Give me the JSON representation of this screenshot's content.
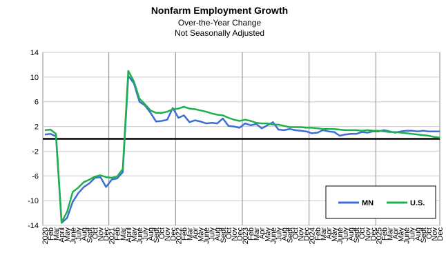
{
  "chart_data": {
    "type": "line",
    "title": "Nonfarm Employment Growth",
    "subtitle": [
      "Over-the-Year Change",
      "Not Seasonally Adjusted"
    ],
    "categories": [
      "2020",
      "Feb",
      "Mar",
      "April",
      "May",
      "June",
      "July",
      "Aug",
      "Sept",
      "Oct",
      "Nov",
      "Dec",
      "2021",
      "Feb",
      "Mar",
      "April",
      "May",
      "June",
      "July",
      "Aug",
      "Sept",
      "Oct",
      "Nov",
      "Dec",
      "2022",
      "Feb",
      "Mar",
      "Apr",
      "May",
      "June",
      "July",
      "Aug",
      "Sept",
      "Oct",
      "Nov",
      "Dec",
      "2023",
      "Feb",
      "Mar",
      "Apr",
      "May",
      "June",
      "July",
      "Aug",
      "Sept",
      "Oct",
      "Nov",
      "Dec",
      "2024",
      "Feb",
      "Mar",
      "Apr",
      "May",
      "June",
      "July",
      "Aug",
      "Sept",
      "Oct",
      "Nov",
      "Dec",
      "2025",
      "Feb",
      "Mar",
      "Apr",
      "May",
      "June",
      "July",
      "Aug",
      "Sept",
      "Oct",
      "Nov",
      "Dec"
    ],
    "series": [
      {
        "name": "MN",
        "color": "#3b6fd6",
        "values": [
          0.7,
          0.8,
          0.4,
          -13.6,
          -12.8,
          -10.2,
          -8.8,
          -7.8,
          -7.2,
          -6.3,
          -6.2,
          -7.8,
          -6.6,
          -6.4,
          -5.4,
          10.2,
          9.0,
          6.0,
          5.4,
          4.2,
          2.8,
          2.9,
          3.1,
          5.0,
          3.4,
          3.8,
          2.7,
          3.0,
          2.8,
          2.5,
          2.6,
          2.5,
          3.3,
          2.1,
          2.0,
          1.8,
          2.5,
          2.2,
          2.4,
          1.7,
          2.2,
          2.7,
          1.5,
          1.4,
          1.6,
          1.4,
          1.3,
          1.2,
          0.9,
          1.0,
          1.4,
          1.2,
          1.1,
          0.5,
          0.7,
          0.8,
          0.8,
          1.1,
          1.0,
          1.2,
          1.2,
          1.4,
          1.2,
          1.0,
          1.2,
          1.3,
          1.3,
          1.2,
          1.3,
          1.2,
          1.2,
          1.2
        ]
      },
      {
        "name": "U.S.",
        "color": "#1fb04c",
        "values": [
          1.4,
          1.5,
          0.8,
          -13.5,
          -11.8,
          -8.6,
          -7.9,
          -7.0,
          -6.6,
          -6.1,
          -5.9,
          -6.2,
          -6.3,
          -6.1,
          -4.9,
          11.0,
          9.3,
          6.5,
          5.6,
          4.6,
          4.2,
          4.2,
          4.4,
          4.8,
          4.9,
          5.2,
          4.9,
          4.8,
          4.6,
          4.4,
          4.1,
          3.9,
          3.8,
          3.4,
          3.1,
          2.9,
          3.1,
          2.9,
          2.6,
          2.5,
          2.5,
          2.3,
          2.3,
          2.1,
          1.9,
          1.9,
          1.9,
          1.8,
          1.8,
          1.7,
          1.6,
          1.6,
          1.6,
          1.5,
          1.4,
          1.4,
          1.4,
          1.3,
          1.4,
          1.3,
          1.3,
          1.2,
          1.1,
          1.1,
          1.0,
          0.9,
          0.8,
          0.7,
          0.6,
          0.5,
          0.3,
          0.2
        ]
      }
    ],
    "ylim": [
      -14,
      14
    ],
    "yticks": [
      -14,
      -10,
      -6,
      -2,
      2,
      6,
      10,
      14
    ],
    "zero_line": 0,
    "grid": true,
    "legend": "lower right"
  }
}
